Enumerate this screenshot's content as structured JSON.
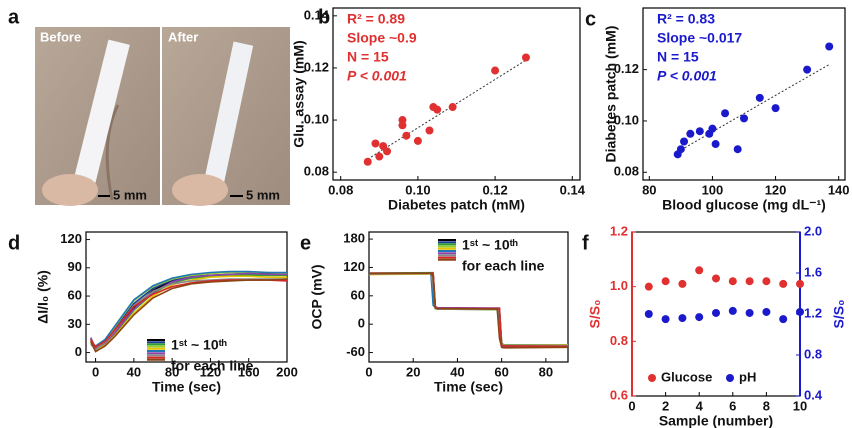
{
  "photo": {
    "label": "a",
    "captions": [
      "Before",
      "After"
    ],
    "scale_bars": [
      "5 mm",
      "5 mm"
    ]
  },
  "chart_data": [
    {
      "type": "scatter",
      "label": "b",
      "x_label": "Diabetes patch (mM)",
      "y_label": "Glu. assay (mM)",
      "color": "#e03030",
      "annotations": [
        "R² = 0.89",
        "Slope ~0.9",
        "N = 15",
        "P < 0.001"
      ],
      "x": [
        0.087,
        0.089,
        0.09,
        0.091,
        0.092,
        0.096,
        0.096,
        0.097,
        0.1,
        0.103,
        0.104,
        0.105,
        0.109,
        0.12,
        0.128
      ],
      "y": [
        0.084,
        0.091,
        0.086,
        0.09,
        0.088,
        0.098,
        0.1,
        0.094,
        0.092,
        0.096,
        0.105,
        0.104,
        0.105,
        0.119,
        0.124
      ],
      "fit": {
        "x": [
          0.087,
          0.128
        ],
        "y": [
          0.085,
          0.123
        ]
      },
      "xlim": [
        0.078,
        0.142
      ],
      "ylim": [
        0.077,
        0.143
      ],
      "xticks": [
        0.08,
        {
          "value": 0.1,
          "label": "0.10"
        },
        0.12,
        0.14
      ],
      "yticks": [
        0.08,
        {
          "value": 0.1,
          "label": "0.10"
        },
        0.12,
        0.14
      ]
    },
    {
      "type": "scatter",
      "label": "c",
      "x_label": "Blood glucose (mg dL⁻¹)",
      "y_label": "Diabetes patch (mM)",
      "color": "#1a1acc",
      "annotations": [
        "R² = 0.83",
        "Slope ~0.017",
        "N = 15",
        "P < 0.001"
      ],
      "x": [
        89,
        90,
        91,
        93,
        96,
        99,
        100,
        101,
        104,
        108,
        110,
        115,
        120,
        130,
        137
      ],
      "y": [
        0.087,
        0.089,
        0.092,
        0.095,
        0.096,
        0.095,
        0.097,
        0.091,
        0.103,
        0.089,
        0.101,
        0.109,
        0.105,
        0.12,
        0.129
      ],
      "fit": {
        "x": [
          89,
          137
        ],
        "y": [
          0.088,
          0.122
        ]
      },
      "xlim": [
        78,
        142
      ],
      "ylim": [
        0.077,
        0.144
      ],
      "xticks": [
        80,
        100,
        120,
        140
      ],
      "yticks": [
        0.08,
        {
          "value": 0.1,
          "label": "0.10"
        },
        0.12
      ]
    },
    {
      "type": "line",
      "label": "d",
      "x_label": "Time (sec)",
      "y_label": "ΔI/I₀ (%)",
      "legend_text": [
        "1ˢᵗ ~ 10ᵗʰ",
        "for each line"
      ],
      "x": [
        -5,
        0,
        10,
        20,
        40,
        60,
        80,
        100,
        120,
        140,
        160,
        180,
        200
      ],
      "series": [
        {
          "color": "#000000",
          "values": [
            14,
            4,
            10,
            22,
            48,
            66,
            76,
            80,
            82,
            83,
            84,
            84,
            84
          ]
        },
        {
          "color": "#1f3a93",
          "values": [
            12,
            6,
            12,
            25,
            52,
            68,
            77,
            81,
            82,
            82,
            83,
            83,
            83
          ]
        },
        {
          "color": "#2ca02c",
          "values": [
            15,
            3,
            9,
            20,
            45,
            63,
            74,
            79,
            81,
            82,
            82,
            82,
            82
          ]
        },
        {
          "color": "#9acd32",
          "values": [
            10,
            5,
            13,
            27,
            55,
            70,
            78,
            82,
            84,
            85,
            85,
            85,
            84
          ]
        },
        {
          "color": "#e5c100",
          "values": [
            13,
            2,
            8,
            18,
            42,
            60,
            72,
            77,
            80,
            81,
            81,
            80,
            80
          ]
        },
        {
          "color": "#1f77b4",
          "values": [
            11,
            7,
            14,
            28,
            56,
            71,
            79,
            83,
            85,
            86,
            86,
            85,
            85
          ]
        },
        {
          "color": "#8e44ad",
          "values": [
            16,
            4,
            10,
            21,
            46,
            64,
            75,
            80,
            82,
            83,
            84,
            83,
            83
          ]
        },
        {
          "color": "#888888",
          "values": [
            9,
            3,
            11,
            23,
            50,
            65,
            73,
            76,
            77,
            78,
            78,
            78,
            78
          ]
        },
        {
          "color": "#d62728",
          "values": [
            14,
            6,
            12,
            24,
            49,
            62,
            70,
            74,
            76,
            77,
            77,
            77,
            76
          ]
        },
        {
          "color": "#8b4513",
          "values": [
            12,
            1,
            7,
            17,
            40,
            58,
            68,
            73,
            75,
            76,
            77,
            77,
            78
          ]
        }
      ],
      "xlim": [
        -10,
        200
      ],
      "ylim": [
        -10,
        128
      ],
      "xticks": [
        0,
        40,
        80,
        120,
        160,
        200
      ],
      "yticks": [
        0,
        30,
        60,
        90,
        120
      ]
    },
    {
      "type": "line",
      "label": "e",
      "x_label": "Time (sec)",
      "y_label": "OCP (mV)",
      "legend_text": [
        "1ˢᵗ ~ 10ᵗʰ",
        "for each line"
      ],
      "x": [
        0,
        28,
        29,
        30,
        31,
        58,
        59,
        60,
        61,
        90
      ],
      "series": [
        {
          "color": "#000000",
          "values": [
            107,
            108,
            108,
            35,
            33,
            32,
            31,
            -44,
            -46,
            -45
          ]
        },
        {
          "color": "#1f3a93",
          "values": [
            106,
            107,
            60,
            34,
            32,
            31,
            28,
            -46,
            -47,
            -46
          ]
        },
        {
          "color": "#2ca02c",
          "values": [
            108,
            109,
            109,
            36,
            34,
            33,
            33,
            -40,
            -44,
            -44
          ]
        },
        {
          "color": "#9acd32",
          "values": [
            107,
            107,
            90,
            33,
            32,
            31,
            -10,
            -47,
            -48,
            -47
          ]
        },
        {
          "color": "#e5c100",
          "values": [
            105,
            106,
            106,
            34,
            33,
            32,
            32,
            -42,
            -45,
            -44
          ]
        },
        {
          "color": "#1f77b4",
          "values": [
            108,
            108,
            40,
            35,
            34,
            33,
            10,
            -46,
            -46,
            -46
          ]
        },
        {
          "color": "#8e44ad",
          "values": [
            107,
            107,
            107,
            37,
            35,
            34,
            34,
            -48,
            -49,
            -48
          ]
        },
        {
          "color": "#888888",
          "values": [
            106,
            107,
            80,
            33,
            32,
            32,
            20,
            -44,
            -45,
            -45
          ]
        },
        {
          "color": "#d62728",
          "values": [
            108,
            108,
            108,
            36,
            33,
            33,
            33,
            -45,
            -46,
            -47
          ]
        },
        {
          "color": "#8b4513",
          "values": [
            107,
            108,
            100,
            34,
            33,
            32,
            -30,
            -49,
            -50,
            -49
          ]
        }
      ],
      "xlim": [
        0,
        90
      ],
      "ylim": [
        -80,
        195
      ],
      "xticks": [
        0,
        20,
        40,
        60,
        80
      ],
      "yticks": [
        -60,
        0,
        60,
        120,
        180
      ]
    },
    {
      "type": "scatter",
      "label": "f",
      "x_label": "Sample (number)",
      "y_label": "S/S₀",
      "y2_label": "S/S₀",
      "x": [
        1,
        2,
        3,
        4,
        5,
        6,
        7,
        8,
        9,
        10
      ],
      "series": [
        {
          "name": "Glucose",
          "color": "#e03030",
          "values": [
            1.0,
            1.02,
            1.01,
            1.06,
            1.03,
            1.02,
            1.02,
            1.02,
            1.01,
            1.01
          ]
        },
        {
          "name": "pH",
          "color": "#1a1acc",
          "axis": "y2",
          "values": [
            1.2,
            1.15,
            1.16,
            1.17,
            1.21,
            1.23,
            1.21,
            1.22,
            1.15,
            1.22
          ]
        }
      ],
      "xlim": [
        0,
        10
      ],
      "xticks": [
        0,
        2,
        4,
        6,
        8,
        10
      ],
      "ylim": [
        0.6,
        1.2
      ],
      "yticks": [
        0.6,
        0.8,
        {
          "value": 1,
          "label": "1.0"
        },
        1.2
      ],
      "y2lim": [
        0.4,
        2.0
      ],
      "y2ticks": [
        0.4,
        0.8,
        1.2,
        1.6,
        {
          "value": 2,
          "label": "2.0"
        }
      ]
    }
  ]
}
